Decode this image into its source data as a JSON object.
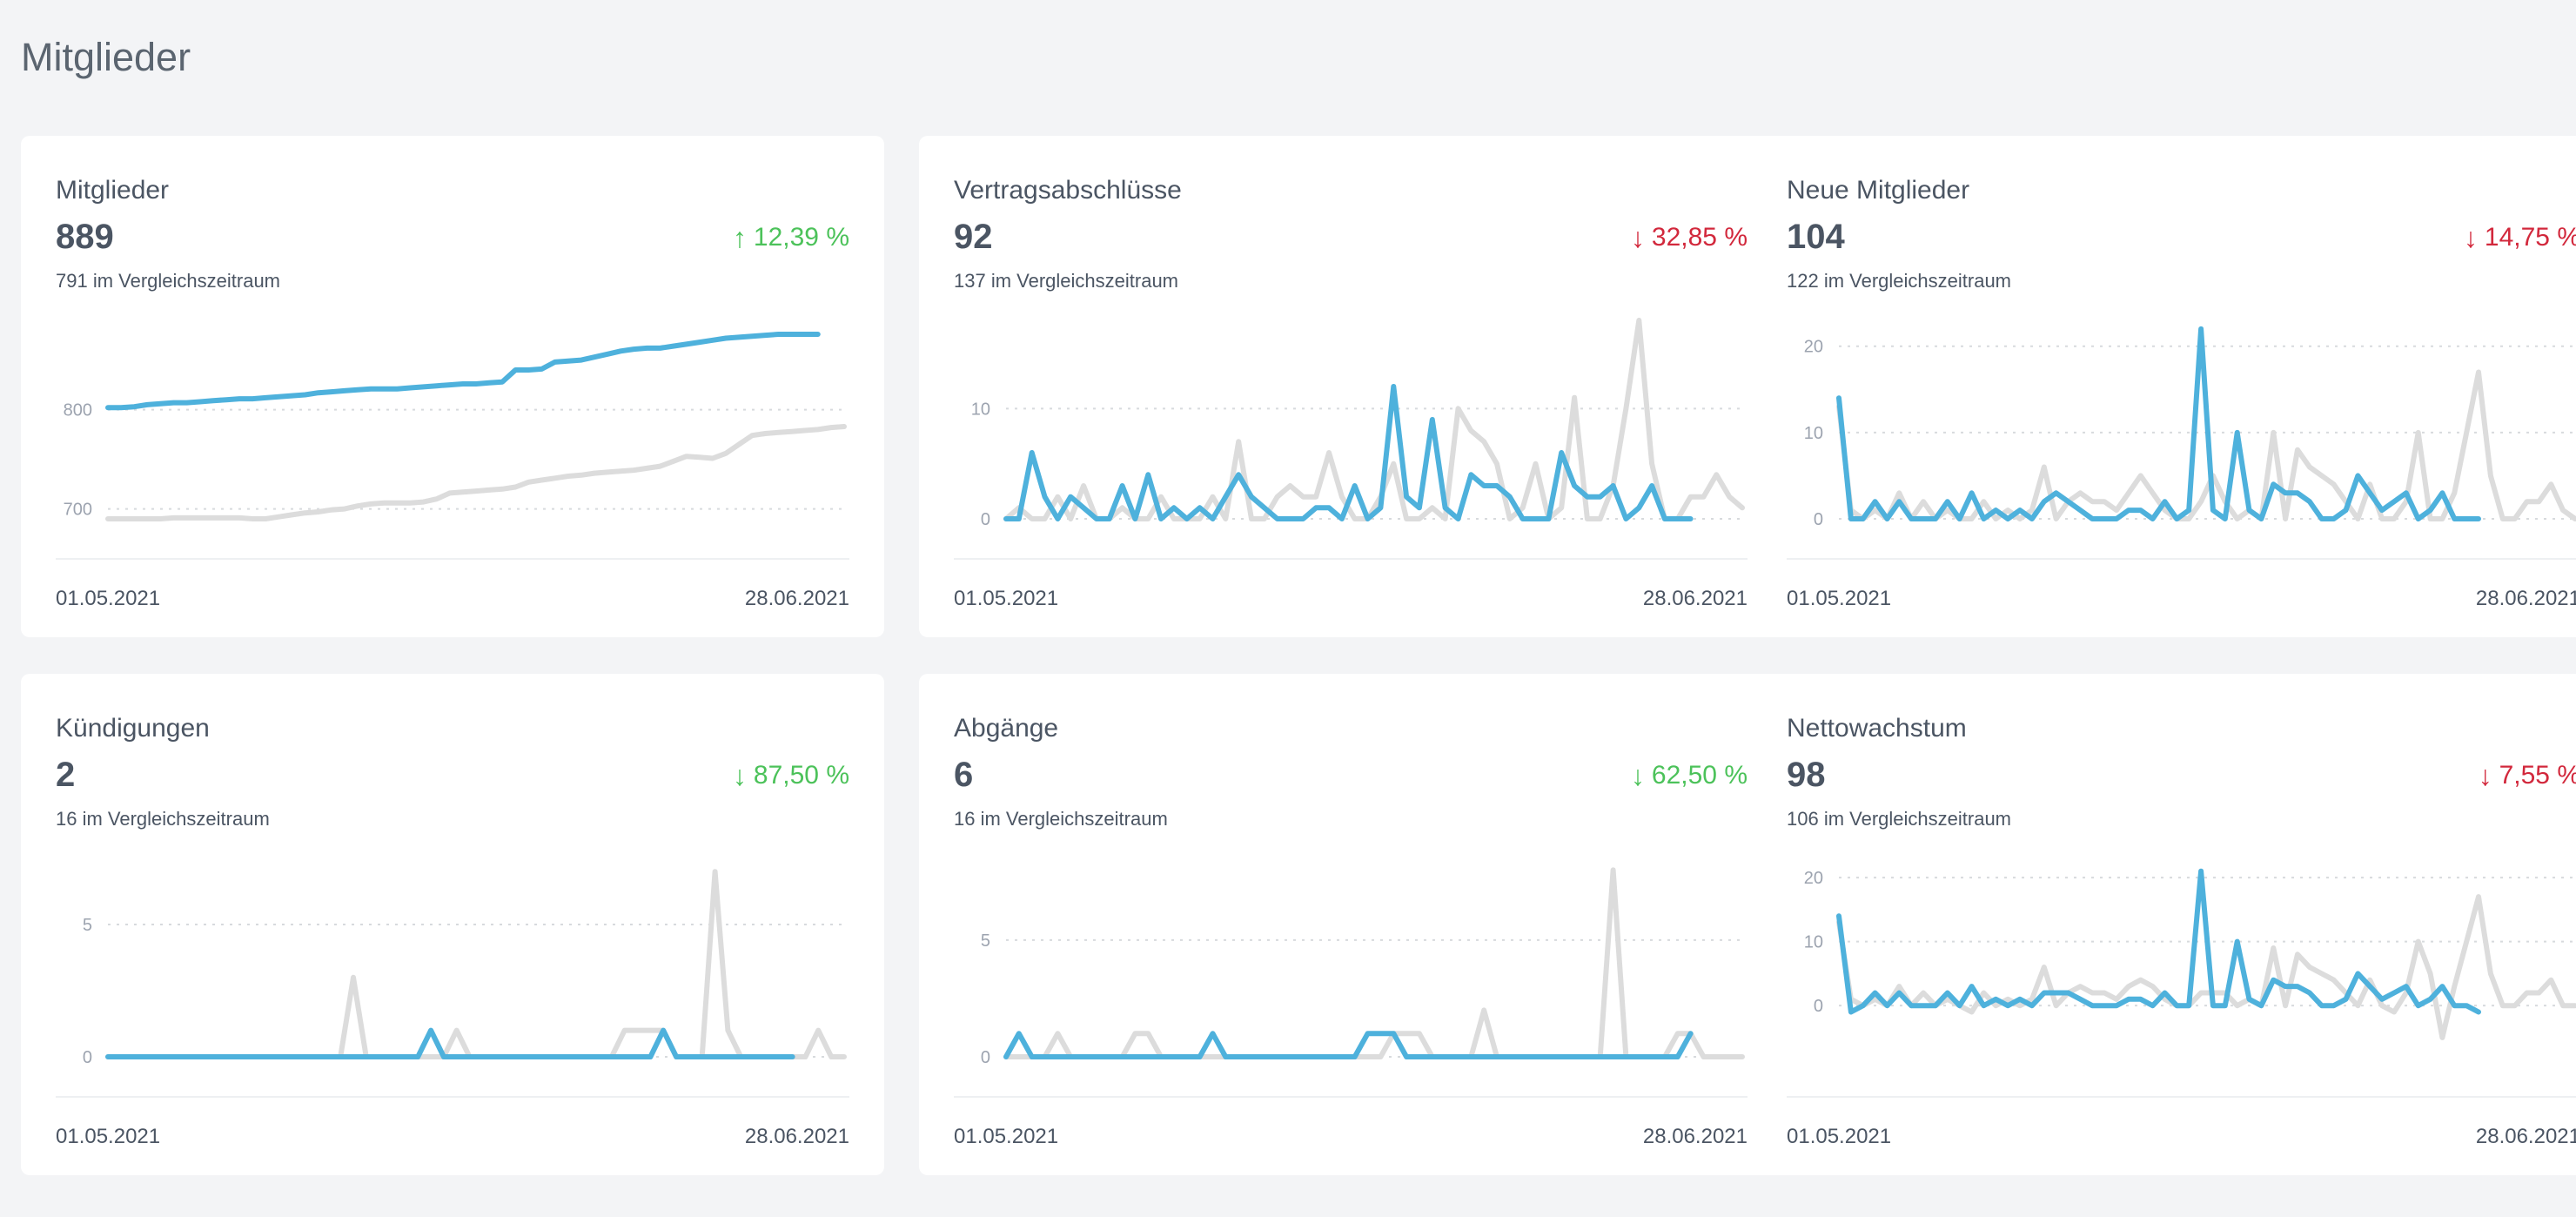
{
  "page": {
    "title": "Mitglieder"
  },
  "colors": {
    "current": "#4eb1dc",
    "previous": "#dcdcdc",
    "positive": "#4cc25a",
    "negative": "#d2283c"
  },
  "cards": [
    {
      "title": "Mitglieder",
      "value": "889",
      "change": "12,39 %",
      "direction": "up",
      "trend": "positive",
      "compare": "791 im Vergleichszeitraum",
      "date_start": "01.05.2021",
      "date_end": "28.06.2021",
      "chart_data": {
        "type": "line",
        "yticks": [
          700,
          800
        ],
        "ylim": [
          690,
          890
        ],
        "series": [
          {
            "values": [
              802,
              802,
              803,
              805,
              806,
              807,
              807,
              808,
              809,
              810,
              811,
              811,
              812,
              813,
              814,
              815,
              817,
              818,
              819,
              820,
              821,
              821,
              821,
              822,
              823,
              824,
              825,
              826,
              826,
              827,
              828,
              840,
              840,
              841,
              848,
              849,
              850,
              853,
              856,
              859,
              861,
              862,
              862,
              864,
              866,
              868,
              870,
              872,
              873,
              874,
              875,
              876,
              876,
              876,
              876
            ]
          },
          {
            "values": [
              690,
              690,
              690,
              690,
              690,
              691,
              691,
              691,
              691,
              691,
              691,
              690,
              690,
              692,
              694,
              696,
              697,
              699,
              700,
              703,
              705,
              706,
              706,
              706,
              707,
              710,
              716,
              717,
              718,
              719,
              720,
              722,
              727,
              729,
              731,
              733,
              734,
              736,
              737,
              738,
              739,
              741,
              743,
              748,
              753,
              752,
              751,
              756,
              765,
              774,
              776,
              777,
              778,
              779,
              780,
              782,
              783
            ]
          }
        ]
      }
    },
    {
      "title": "Vertragsabschlüsse",
      "value": "92",
      "change": "32,85 %",
      "direction": "down",
      "trend": "negative",
      "compare": "137 im Vergleichszeitraum",
      "date_start": "01.05.2021",
      "date_end": "28.06.2021",
      "chart_data": {
        "type": "line",
        "yticks": [
          0,
          10
        ],
        "ylim": [
          0,
          18
        ],
        "series": [
          {
            "values": [
              0,
              0,
              6,
              2,
              0,
              2,
              1,
              0,
              0,
              3,
              0,
              4,
              0,
              1,
              0,
              1,
              0,
              2,
              4,
              2,
              1,
              0,
              0,
              0,
              1,
              1,
              0,
              3,
              0,
              1,
              12,
              2,
              1,
              9,
              1,
              0,
              4,
              3,
              3,
              2,
              0,
              0,
              0,
              6,
              3,
              2,
              2,
              3,
              0,
              1,
              3,
              0,
              0,
              0
            ]
          },
          {
            "values": [
              0,
              1,
              0,
              0,
              2,
              0,
              3,
              0,
              0,
              1,
              0,
              0,
              2,
              0,
              0,
              0,
              2,
              0,
              7,
              0,
              0,
              2,
              3,
              2,
              2,
              6,
              2,
              0,
              0,
              2,
              5,
              0,
              0,
              1,
              0,
              10,
              8,
              7,
              5,
              0,
              1,
              5,
              0,
              1,
              11,
              0,
              0,
              3,
              10,
              18,
              5,
              0,
              0,
              2,
              2,
              4,
              2,
              1
            ]
          }
        ]
      }
    },
    {
      "title": "Neue Mitglieder",
      "value": "104",
      "change": "14,75 %",
      "direction": "down",
      "trend": "negative",
      "compare": "122 im Vergleichszeitraum",
      "date_start": "01.05.2021",
      "date_end": "28.06.2021",
      "chart_data": {
        "type": "line",
        "yticks": [
          0,
          10,
          20
        ],
        "ylim": [
          0,
          23
        ],
        "series": [
          {
            "values": [
              14,
              0,
              0,
              2,
              0,
              2,
              0,
              0,
              0,
              2,
              0,
              3,
              0,
              1,
              0,
              1,
              0,
              2,
              3,
              2,
              1,
              0,
              0,
              0,
              1,
              1,
              0,
              2,
              0,
              1,
              22,
              1,
              0,
              10,
              1,
              0,
              4,
              3,
              3,
              2,
              0,
              0,
              1,
              5,
              3,
              1,
              2,
              3,
              0,
              1,
              3,
              0,
              0,
              0
            ]
          },
          {
            "values": [
              13,
              1,
              0,
              1,
              0,
              3,
              0,
              2,
              0,
              1,
              0,
              0,
              2,
              0,
              1,
              0,
              1,
              6,
              0,
              2,
              3,
              2,
              2,
              1,
              3,
              5,
              3,
              1,
              0,
              0,
              2,
              5,
              2,
              0,
              1,
              0,
              10,
              0,
              8,
              6,
              5,
              4,
              2,
              0,
              4,
              0,
              0,
              2,
              10,
              0,
              0,
              3,
              10,
              17,
              5,
              0,
              0,
              2,
              2,
              4,
              1,
              0
            ]
          }
        ]
      }
    },
    {
      "title": "Kündigungen",
      "value": "2",
      "change": "87,50 %",
      "direction": "down",
      "trend": "positive",
      "compare": "16 im Vergleichszeitraum",
      "date_start": "01.05.2021",
      "date_end": "28.06.2021",
      "chart_data": {
        "type": "line",
        "yticks": [
          0,
          5
        ],
        "ylim": [
          0,
          7.5
        ],
        "series": [
          {
            "values": [
              0,
              0,
              0,
              0,
              0,
              0,
              0,
              0,
              0,
              0,
              0,
              0,
              0,
              0,
              0,
              0,
              0,
              0,
              0,
              0,
              0,
              0,
              0,
              0,
              0,
              1,
              0,
              0,
              0,
              0,
              0,
              0,
              0,
              0,
              0,
              0,
              0,
              0,
              0,
              0,
              0,
              0,
              0,
              1,
              0,
              0,
              0,
              0,
              0,
              0,
              0,
              0,
              0,
              0
            ]
          },
          {
            "values": [
              0,
              0,
              0,
              0,
              0,
              0,
              0,
              0,
              0,
              0,
              0,
              0,
              0,
              0,
              0,
              0,
              0,
              0,
              0,
              3,
              0,
              0,
              0,
              0,
              0,
              0,
              0,
              1,
              0,
              0,
              0,
              0,
              0,
              0,
              0,
              0,
              0,
              0,
              0,
              0,
              1,
              1,
              1,
              1,
              0,
              0,
              0,
              7,
              1,
              0,
              0,
              0,
              0,
              0,
              0,
              1,
              0,
              0
            ]
          }
        ]
      }
    },
    {
      "title": "Abgänge",
      "value": "6",
      "change": "62,50 %",
      "direction": "down",
      "trend": "positive",
      "compare": "16 im Vergleichszeitraum",
      "date_start": "01.05.2021",
      "date_end": "28.06.2021",
      "chart_data": {
        "type": "line",
        "yticks": [
          0,
          5
        ],
        "ylim": [
          0,
          8.5
        ],
        "series": [
          {
            "values": [
              0,
              1,
              0,
              0,
              0,
              0,
              0,
              0,
              0,
              0,
              0,
              0,
              0,
              0,
              0,
              0,
              1,
              0,
              0,
              0,
              0,
              0,
              0,
              0,
              0,
              0,
              0,
              0,
              1,
              1,
              1,
              0,
              0,
              0,
              0,
              0,
              0,
              0,
              0,
              0,
              0,
              0,
              0,
              0,
              0,
              0,
              0,
              0,
              0,
              0,
              0,
              0,
              0,
              1
            ]
          },
          {
            "values": [
              0,
              0,
              0,
              0,
              1,
              0,
              0,
              0,
              0,
              0,
              1,
              1,
              0,
              0,
              0,
              0,
              0,
              0,
              0,
              0,
              0,
              0,
              0,
              0,
              0,
              0,
              0,
              0,
              0,
              0,
              1,
              1,
              1,
              0,
              0,
              0,
              0,
              2,
              0,
              0,
              0,
              0,
              0,
              0,
              0,
              0,
              0,
              8,
              0,
              0,
              0,
              0,
              1,
              1,
              0,
              0,
              0,
              0
            ]
          }
        ]
      }
    },
    {
      "title": "Nettowachstum",
      "value": "98",
      "change": "7,55 %",
      "direction": "down",
      "trend": "negative",
      "compare": "106 im Vergleichszeitraum",
      "date_start": "01.05.2021",
      "date_end": "28.06.2021",
      "chart_data": {
        "type": "line",
        "yticks": [
          0,
          10,
          20
        ],
        "ylim": [
          -8,
          23
        ],
        "series": [
          {
            "values": [
              14,
              -1,
              0,
              2,
              0,
              2,
              0,
              0,
              0,
              2,
              0,
              3,
              0,
              1,
              0,
              1,
              0,
              2,
              2,
              2,
              1,
              0,
              0,
              0,
              1,
              1,
              0,
              2,
              0,
              0,
              21,
              0,
              0,
              10,
              1,
              0,
              4,
              3,
              3,
              2,
              0,
              0,
              1,
              5,
              3,
              1,
              2,
              3,
              0,
              1,
              3,
              0,
              0,
              -1
            ]
          },
          {
            "values": [
              13,
              1,
              0,
              1,
              0,
              3,
              0,
              2,
              0,
              1,
              0,
              -1,
              2,
              0,
              1,
              0,
              1,
              6,
              0,
              2,
              3,
              2,
              2,
              1,
              3,
              4,
              3,
              1,
              0,
              0,
              2,
              2,
              2,
              0,
              1,
              0,
              9,
              0,
              8,
              6,
              5,
              4,
              2,
              0,
              4,
              0,
              -1,
              2,
              10,
              5,
              -5,
              3,
              10,
              17,
              5,
              0,
              0,
              2,
              2,
              4,
              0,
              0
            ]
          }
        ]
      }
    }
  ]
}
